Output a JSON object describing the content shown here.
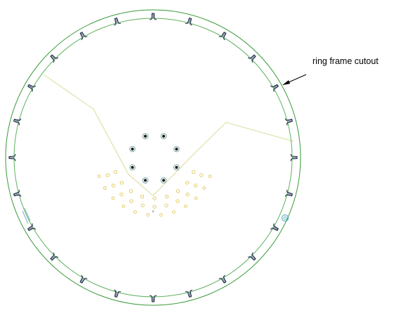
{
  "drawing": {
    "annotation": {
      "label": "ring frame cutout"
    },
    "colors": {
      "background": "#ffffff",
      "outer_ring": "#3a9a3a",
      "inner_ring": "#5fb05f",
      "construction_line": "#d9dc9a",
      "small_holes": "#e0c85a",
      "bolt_outline": "#7aa0a0",
      "bolt_dot": "#101818",
      "cutout_stroke": "#1e2f4a",
      "leader": "#000000",
      "small_circle": "#40a0b8"
    },
    "ring_frame_cutouts": {
      "count": 24,
      "icon": "ring-frame-cutout-icon"
    },
    "bolt_holes": {
      "count": 8,
      "icon": "bolt-hole-icon"
    },
    "small_hole_pattern": {
      "icon": "small-hole-icon"
    }
  }
}
